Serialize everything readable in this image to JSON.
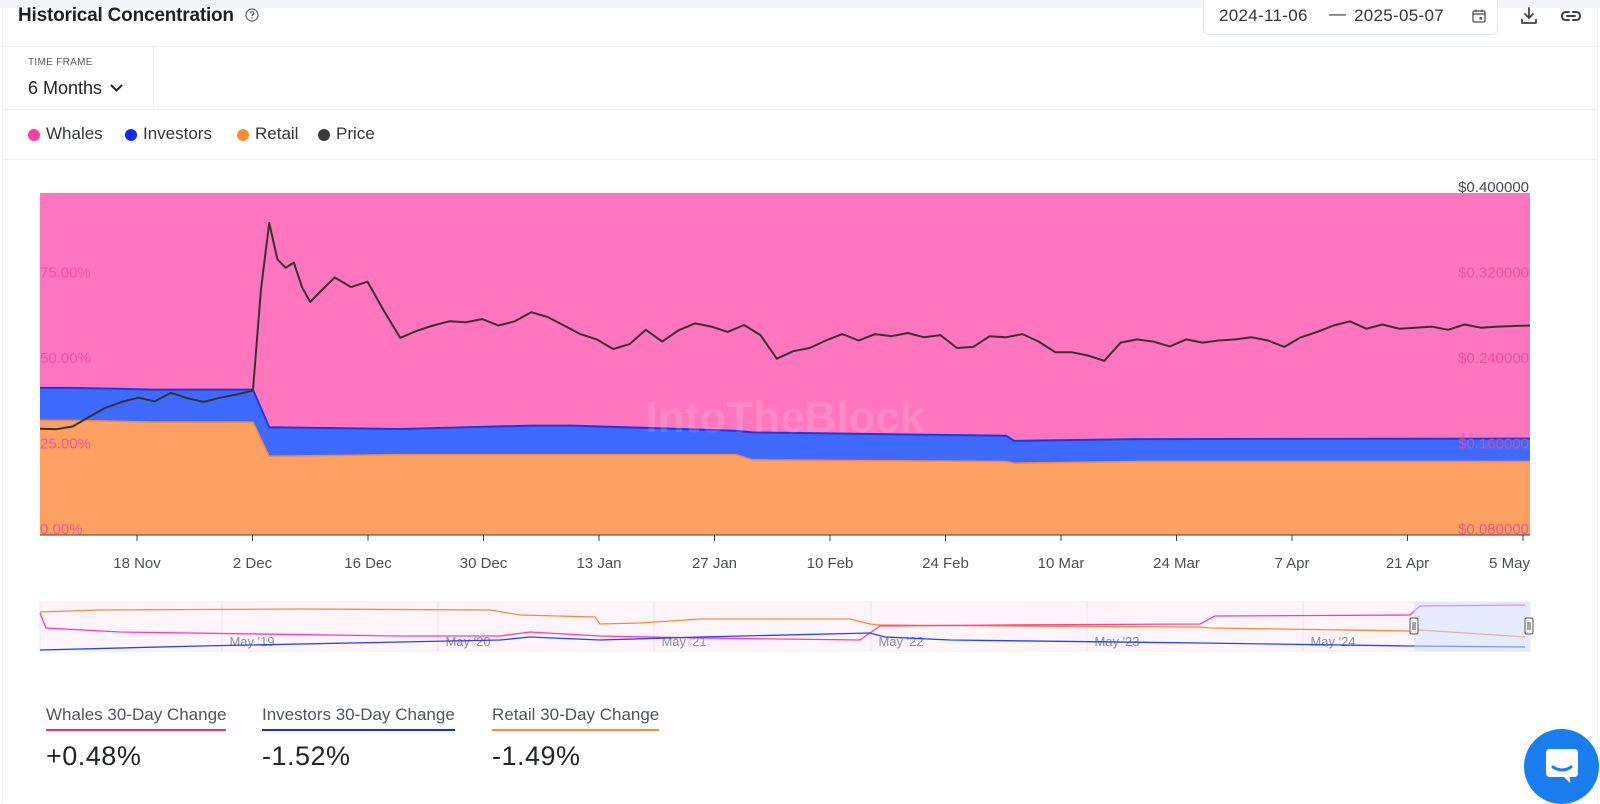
{
  "header": {
    "title": "Historical Concentration",
    "date_start": "2024-11-06",
    "date_sep": "—",
    "date_end": "2025-05-07"
  },
  "timeframe": {
    "label": "TIME FRAME",
    "value": "6 Months"
  },
  "legend": [
    {
      "name": "Whales",
      "color": "#ff3ea5"
    },
    {
      "name": "Investors",
      "color": "#0d2bff"
    },
    {
      "name": "Retail",
      "color": "#ff8c2a"
    },
    {
      "name": "Price",
      "color": "#3a3a3a"
    }
  ],
  "watermark": "IntoTheBlock",
  "chart_data": {
    "type": "area",
    "stacked": true,
    "x_labels": [
      "18 Nov",
      "2 Dec",
      "16 Dec",
      "30 Dec",
      "13 Jan",
      "27 Jan",
      "10 Feb",
      "24 Feb",
      "10 Mar",
      "24 Mar",
      "7 Apr",
      "21 Apr",
      "5 May"
    ],
    "x_range": [
      "2024-11-06",
      "2025-05-07"
    ],
    "y_left": {
      "ticks": [
        "0.00%",
        "25.00%",
        "50.00%",
        "75.00%"
      ],
      "range": [
        0,
        100
      ]
    },
    "y_right": {
      "ticks": [
        "$0.080000",
        "$0.160000",
        "$0.240000",
        "$0.320000",
        "$0.400000"
      ],
      "range": [
        0.08,
        0.4
      ]
    },
    "series": [
      {
        "name": "Retail",
        "color": "#ffa063",
        "unit": "percent",
        "points": [
          [
            "2024-11-06",
            33.5
          ],
          [
            "2024-11-10",
            33.5
          ],
          [
            "2024-11-20",
            33.0
          ],
          [
            "2024-12-02",
            33.0
          ],
          [
            "2024-12-04",
            23.0
          ],
          [
            "2024-12-20",
            23.5
          ],
          [
            "2025-01-10",
            23.5
          ],
          [
            "2025-01-30",
            23.5
          ],
          [
            "2025-02-01",
            22.0
          ],
          [
            "2025-03-04",
            21.5
          ],
          [
            "2025-03-05",
            21.0
          ],
          [
            "2025-03-20",
            21.5
          ],
          [
            "2025-05-07",
            21.5
          ]
        ]
      },
      {
        "name": "Investors",
        "color": "#3e6aff",
        "unit": "percent",
        "points": [
          [
            "2024-11-06",
            9.5
          ],
          [
            "2024-12-02",
            9.5
          ],
          [
            "2024-12-04",
            8.5
          ],
          [
            "2024-12-20",
            7.5
          ],
          [
            "2025-01-05",
            8.5
          ],
          [
            "2025-01-10",
            8.5
          ],
          [
            "2025-01-30",
            7.0
          ],
          [
            "2025-02-01",
            8.0
          ],
          [
            "2025-03-04",
            7.5
          ],
          [
            "2025-03-05",
            6.5
          ],
          [
            "2025-05-07",
            6.7
          ]
        ]
      },
      {
        "name": "Whales",
        "color": "#ff75be",
        "unit": "percent",
        "points": [
          [
            "2024-11-06",
            57.0
          ],
          [
            "2024-12-02",
            57.5
          ],
          [
            "2024-12-04",
            68.5
          ],
          [
            "2025-02-01",
            70.0
          ],
          [
            "2025-03-05",
            72.5
          ],
          [
            "2025-05-07",
            71.8
          ]
        ]
      },
      {
        "name": "Price",
        "color": "#333333",
        "unit": "usd",
        "points": [
          [
            "2024-11-06",
            0.1795
          ],
          [
            "2024-11-08",
            0.179
          ],
          [
            "2024-11-10",
            0.1815
          ],
          [
            "2024-11-12",
            0.1905
          ],
          [
            "2024-11-14",
            0.199
          ],
          [
            "2024-11-16",
            0.2045
          ],
          [
            "2024-11-18",
            0.2085
          ],
          [
            "2024-11-20",
            0.205
          ],
          [
            "2024-11-22",
            0.213
          ],
          [
            "2024-11-24",
            0.208
          ],
          [
            "2024-11-26",
            0.2045
          ],
          [
            "2024-11-28",
            0.2085
          ],
          [
            "2024-11-30",
            0.2115
          ],
          [
            "2024-12-02",
            0.215
          ],
          [
            "2024-12-03",
            0.31
          ],
          [
            "2024-12-04",
            0.372
          ],
          [
            "2024-12-05",
            0.338
          ],
          [
            "2024-12-06",
            0.33
          ],
          [
            "2024-12-07",
            0.335
          ],
          [
            "2024-12-08",
            0.312
          ],
          [
            "2024-12-09",
            0.298
          ],
          [
            "2024-12-10",
            0.306
          ],
          [
            "2024-12-12",
            0.321
          ],
          [
            "2024-12-14",
            0.312
          ],
          [
            "2024-12-16",
            0.317
          ],
          [
            "2024-12-18",
            0.29
          ],
          [
            "2024-12-20",
            0.2645
          ],
          [
            "2024-12-22",
            0.271
          ],
          [
            "2024-12-24",
            0.276
          ],
          [
            "2024-12-26",
            0.28
          ],
          [
            "2024-12-28",
            0.279
          ],
          [
            "2024-12-30",
            0.282
          ],
          [
            "2025-01-01",
            0.276
          ],
          [
            "2025-01-03",
            0.28
          ],
          [
            "2025-01-05",
            0.2885
          ],
          [
            "2025-01-07",
            0.284
          ],
          [
            "2025-01-09",
            0.276
          ],
          [
            "2025-01-11",
            0.268
          ],
          [
            "2025-01-13",
            0.263
          ],
          [
            "2025-01-15",
            0.254
          ],
          [
            "2025-01-17",
            0.2585
          ],
          [
            "2025-01-19",
            0.272
          ],
          [
            "2025-01-21",
            0.261
          ],
          [
            "2025-01-23",
            0.2715
          ],
          [
            "2025-01-25",
            0.278
          ],
          [
            "2025-01-27",
            0.275
          ],
          [
            "2025-01-29",
            0.27
          ],
          [
            "2025-01-31",
            0.2765
          ],
          [
            "2025-02-02",
            0.267
          ],
          [
            "2025-02-04",
            0.245
          ],
          [
            "2025-02-06",
            0.252
          ],
          [
            "2025-02-08",
            0.255
          ],
          [
            "2025-02-10",
            0.262
          ],
          [
            "2025-02-12",
            0.268
          ],
          [
            "2025-02-14",
            0.262
          ],
          [
            "2025-02-16",
            0.268
          ],
          [
            "2025-02-18",
            0.266
          ],
          [
            "2025-02-20",
            0.269
          ],
          [
            "2025-02-22",
            0.265
          ],
          [
            "2025-02-24",
            0.267
          ],
          [
            "2025-02-26",
            0.255
          ],
          [
            "2025-02-28",
            0.256
          ],
          [
            "2025-03-02",
            0.266
          ],
          [
            "2025-03-04",
            0.265
          ],
          [
            "2025-03-06",
            0.268
          ],
          [
            "2025-03-08",
            0.261
          ],
          [
            "2025-03-10",
            0.251
          ],
          [
            "2025-03-12",
            0.251
          ],
          [
            "2025-03-14",
            0.248
          ],
          [
            "2025-03-16",
            0.243
          ],
          [
            "2025-03-18",
            0.26
          ],
          [
            "2025-03-20",
            0.263
          ],
          [
            "2025-03-22",
            0.261
          ],
          [
            "2025-03-24",
            0.2565
          ],
          [
            "2025-03-26",
            0.263
          ],
          [
            "2025-03-28",
            0.26
          ],
          [
            "2025-03-30",
            0.262
          ],
          [
            "2025-04-01",
            0.263
          ],
          [
            "2025-04-03",
            0.265
          ],
          [
            "2025-04-05",
            0.262
          ],
          [
            "2025-04-07",
            0.256
          ],
          [
            "2025-04-09",
            0.265
          ],
          [
            "2025-04-11",
            0.27
          ],
          [
            "2025-04-13",
            0.276
          ],
          [
            "2025-04-15",
            0.28
          ],
          [
            "2025-04-17",
            0.273
          ],
          [
            "2025-04-19",
            0.277
          ],
          [
            "2025-04-21",
            0.273
          ],
          [
            "2025-04-23",
            0.274
          ],
          [
            "2025-04-25",
            0.275
          ],
          [
            "2025-04-27",
            0.272
          ],
          [
            "2025-04-29",
            0.277
          ],
          [
            "2025-05-01",
            0.274
          ],
          [
            "2025-05-03",
            0.275
          ],
          [
            "2025-05-07",
            0.276
          ]
        ]
      }
    ],
    "navigator": {
      "labels": [
        "May '19",
        "May '20",
        "May '21",
        "May '22",
        "May '23",
        "May '24"
      ]
    }
  },
  "stats": [
    {
      "label": "Whales 30-Day Change",
      "value": "+0.48%",
      "color": "#e62e92"
    },
    {
      "label": "Investors 30-Day Change",
      "value": "-1.52%",
      "color": "#1d2bd8"
    },
    {
      "label": "Retail 30-Day Change",
      "value": "-1.49%",
      "color": "#f08a3c"
    }
  ]
}
